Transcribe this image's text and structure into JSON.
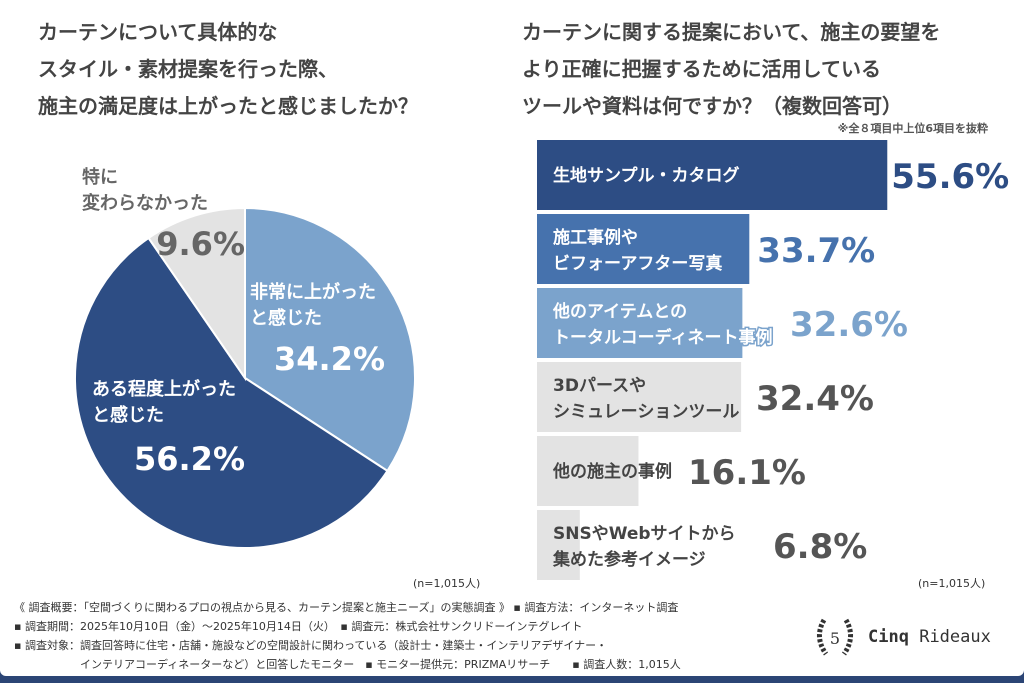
{
  "left": {
    "title": "カーテンについて具体的な\nスタイル・素材提案を行った際、\n施主の満足度は上がったと感じましたか？",
    "n": "(n=1,015人)"
  },
  "right": {
    "title": "カーテンに関する提案において、施主の要望を\nより正確に把握するために活用している\nツールや資料は何ですか？（複数回答可）",
    "note": "※全８項目中上位6項目を抜粋",
    "n": "(n=1,015人)"
  },
  "chart_data": [
    {
      "type": "pie",
      "slices": [
        {
          "label": "非常に上がった\nと感じた",
          "value": 34.2,
          "display": "34.2%",
          "color": "#7ba3cc"
        },
        {
          "label": "ある程度上がった\nと感じた",
          "value": 56.2,
          "display": "56.2%",
          "color": "#2d4d84"
        },
        {
          "label": "特に\n変わらなかった",
          "value": 9.6,
          "display": "9.6%",
          "color": "#e3e3e3"
        }
      ]
    },
    {
      "type": "bar",
      "orientation": "horizontal",
      "categories": [
        "生地サンプル・カタログ",
        "施工事例や\nビフォーアフター写真",
        "他のアイテムとの\nトータルコーディネート事例",
        "3Dパースや\nシミュレーションツール",
        "他の施主の事例",
        "SNSやWebサイトから\n集めた参考イメージ"
      ],
      "values": [
        55.6,
        33.7,
        32.6,
        32.4,
        16.1,
        6.8
      ],
      "display": [
        "55.6%",
        "33.7%",
        "32.6%",
        "32.4%",
        "16.1%",
        "6.8%"
      ],
      "colors": [
        "#2d4d84",
        "#4672ad",
        "#7ba3cc",
        "#e3e3e3",
        "#e3e3e3",
        "#e3e3e3"
      ]
    }
  ],
  "footer": {
    "line1": "《 調査概要：「空間づくりに関わるプロの視点から見る、カーテン提案と施主ニーズ」の実態調査 》 ▪ 調査方法：インターネット調査",
    "line2": "▪ 調査期間：2025年10月10日（金）〜2025年10月14日（火）　▪ 調査元：株式会社サンクリドーインテグレイト",
    "line3": "▪ 調査対象：調査回答時に住宅・店舗・施設などの空間設計に関わっている（設計士・建築士・インテリアデザイナー・",
    "line4": "　　　　　　インテリアコーディネーターなど）と回答したモニター　▪ モニター提供元：PRIZMAリサーチ　　▪ 調査人数：1,015人"
  },
  "logo": {
    "text1": "Cinq",
    "text2": "Rideaux",
    "emblem": "5"
  }
}
